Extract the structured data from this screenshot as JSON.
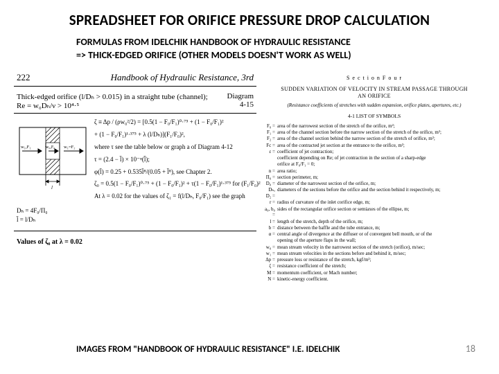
{
  "title": "SPREADSHEET FOR ORIFICE PRESSURE DROP CALCULATION",
  "subtitle_line1": "FORMULAS FROM IDELCHIK HANDBOOK OF HYDRAULIC RESISTANCE",
  "subtitle_line2": "=> THICK-EDGED ORIFICE (OTHER MODELS DOESN'T WORK AS WELL)",
  "left": {
    "page_no": "222",
    "book_title": "Handbook of Hydraulic Resistance, 3rd",
    "fig_head_left": "Thick-edged orifice (l/Dₕ > 0.015) in a straight tube (channel);",
    "fig_head_left2": "Re = w₀Dₕ/ν > 10⁴·⁵",
    "fig_head_right_top": "Diagram",
    "fig_head_right_bot": "4-15",
    "formula1": "ζ ≡ Δp / (ρw₀²/2) = [0.5(1 − F₀/F₁)⁰·⁷⁵ + (1 − F₀/F₁)²",
    "formula2": "   + (1 − F₀/F₁)¹·³⁷⁵ + λ (l/Dₕ)](F₁/F₀)²,",
    "formula3": "where τ see the table below or graph a of Diagram 4-12",
    "formula4": "τ = (2.4 − l̄) × 10⁻ᵠ(l̄);",
    "formula5": "φ(l̄) = 0.25 + 0.535l̄⁸/(0.05 + l̄⁸), see Chapter 2.",
    "formula6": "l̄ = l/Dₕ",
    "formula7": "ζ₀ = 0.5(1 − F₀/F₁)⁰·⁷⁵ + (1 − F₀/F₁)² + τ(1 − F₀/F₁)¹·³⁷⁵   for (F₁/F₀)²",
    "formula8": "At λ = 0.02 for the values of ζ₁ = f(l/Dₕ, F₀/F₁) see the graph",
    "dh": "Dₕ = 4F₀/Π₀",
    "footer_caption": "Values of ζ₀ at λ = 0.02",
    "diagram": {
      "labels": {
        "w1F1": "w₁,F₁",
        "w0F0": "w₀,F₀",
        "w1F2": "w₁=F₂"
      },
      "colors": {
        "stroke": "#000000",
        "hatch": "#000000",
        "bg": "#ffffff"
      }
    }
  },
  "right": {
    "section_label": "S e c t i o n   F o u r",
    "title1": "SUDDEN VARIATION OF VELOCITY IN STREAM PASSAGE THROUGH",
    "title2": "AN ORIFICE",
    "subtitle": "(Resistance coefficients of stretches with sudden expansion, orifice plates, apertures, etc.)",
    "list_label": "4-1  LIST OF SYMBOLS",
    "symbols": [
      {
        "s": "F₀ =",
        "d": "area of the narrowest section of the stretch of the orifice, m²;"
      },
      {
        "s": "F₁ =",
        "d": "area of the channel section before the narrow section of the stretch of the orifice, m²;"
      },
      {
        "s": "F₂ =",
        "d": "area of the channel section behind the narrow section of the stretch of orifice, m²;"
      },
      {
        "s": "Fc =",
        "d": "area of the contracted jet section at the entrance to the orifice, m²;"
      },
      {
        "s": "ε =",
        "d": "coefficient of jet contraction;"
      },
      {
        "s": "   ",
        "d": "coefficient depending on Re; of jet contraction in the section of a sharp-edge"
      },
      {
        "s": "   ",
        "d": "orifice at F₀/F₁ = 0;"
      },
      {
        "s": "n =",
        "d": "area ratio;"
      },
      {
        "s": "Π₀ =",
        "d": "section perimeter, m;"
      },
      {
        "s": "D₀ =",
        "d": "diameter of the narrowest section of the orifice, m;"
      },
      {
        "s": "Dₕ, D₂ =",
        "d": "diameters of the sections before the orifice and the section behind it respectively, m;"
      },
      {
        "s": "r =",
        "d": "radius of curvature of the inlet corifice edge, m;"
      },
      {
        "s": "a₀, b₀ =",
        "d": "sides of the rectangular orifice section or semiaxes of the ellipse, m;"
      },
      {
        "s": "l =",
        "d": "length of the stretch, depth of the orifice, m;"
      },
      {
        "s": "b =",
        "d": "distance between the baffle and the tube entrance, m;"
      },
      {
        "s": "α =",
        "d": "central angle of divergence at the diffuser or of convergent bell mouth, or of the"
      },
      {
        "s": "   ",
        "d": "opening of the aperture flaps in the wall;"
      },
      {
        "s": "w₀ =",
        "d": "mean stream velocity in the narrowest section of the stretch (orifice), m/sec;"
      },
      {
        "s": "w₁ =",
        "d": "mean stream velocities in the sections before and behind it, m/sec;"
      },
      {
        "s": "Δp =",
        "d": "pressure loss or resistance of the stretch, kgf/m²;"
      },
      {
        "s": "ζ =",
        "d": "resistance coefficient of the stretch;"
      },
      {
        "s": "M =",
        "d": "momentum coefficient, or Mach number;"
      },
      {
        "s": "N =",
        "d": "kinetic-energy coefficient."
      }
    ]
  },
  "credit": "IMAGES FROM \"HANDBOOK OF HYDRAULIC RESISTANCE\" I.E. IDELCHIK",
  "page_number": "18"
}
